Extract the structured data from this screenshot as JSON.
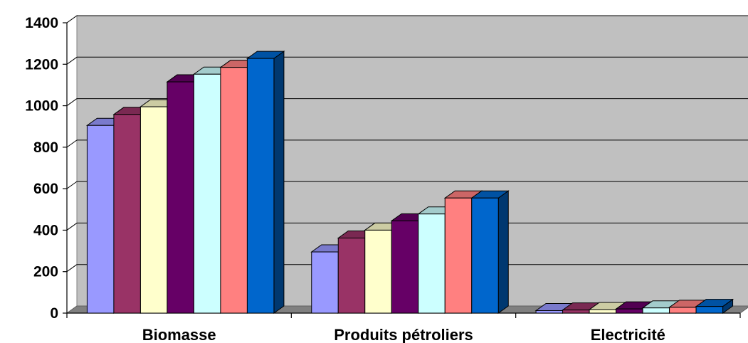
{
  "chart_data": {
    "type": "bar",
    "title": "",
    "xlabel": "",
    "ylabel": "",
    "ylim": [
      0,
      1400
    ],
    "yticks": [
      0,
      200,
      400,
      600,
      800,
      1000,
      1200,
      1400
    ],
    "grid": true,
    "legend": "none",
    "categories": [
      "Biomasse",
      "Produits pétroliers",
      "Electricité"
    ],
    "series": [
      {
        "color": "#9999FF",
        "values": [
          905,
          295,
          12
        ]
      },
      {
        "color": "#993366",
        "values": [
          958,
          362,
          15
        ]
      },
      {
        "color": "#FFFFCC",
        "values": [
          995,
          400,
          17
        ]
      },
      {
        "color": "#660066",
        "values": [
          1115,
          445,
          20
        ]
      },
      {
        "color": "#CCFFFF",
        "values": [
          1152,
          478,
          25
        ]
      },
      {
        "color": "#FF8080",
        "values": [
          1185,
          555,
          28
        ]
      },
      {
        "color": "#0066CC",
        "values": [
          1228,
          555,
          32
        ]
      }
    ],
    "plot_background": "#C0C0C0",
    "gridline_color": "#000000"
  }
}
